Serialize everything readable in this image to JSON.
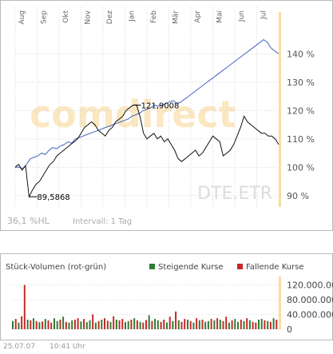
{
  "chart_data": [
    {
      "type": "line",
      "months": [
        "Aug",
        "Sep",
        "Okt",
        "Nov",
        "Dez",
        "Jan",
        "Feb",
        "Mär",
        "Apr",
        "Mai",
        "Jun",
        "Jul"
      ],
      "ylabels": [
        "140 %",
        "130 %",
        "120 %",
        "110 %",
        "100 %",
        "90 %"
      ],
      "yticks": [
        140,
        130,
        120,
        110,
        100,
        90
      ],
      "ylim": [
        86,
        148
      ],
      "grid": true,
      "series": [
        {
          "color": "#4466bb",
          "values": [
            100,
            100,
            99.5,
            101,
            103,
            103.5,
            104,
            105,
            104.5,
            106,
            107,
            106.5,
            107.5,
            108,
            109,
            108.5,
            110,
            110.5,
            111,
            111.5,
            112,
            112.5,
            113,
            113.5,
            114,
            114.5,
            115,
            115.5,
            116,
            116.5,
            117,
            118,
            118.5,
            119,
            120,
            120.5,
            121,
            121.9,
            121.5,
            122,
            122.5,
            123,
            123.5,
            122.5,
            123,
            124,
            125,
            126,
            127,
            128,
            129,
            130,
            131,
            132,
            133,
            134,
            135,
            136,
            137,
            138,
            139,
            140,
            141,
            142,
            143,
            144,
            145,
            144,
            142,
            141,
            140
          ]
        },
        {
          "color": "#111111",
          "values": [
            100,
            101,
            99,
            100.5,
            89.6,
            92,
            94,
            95,
            97,
            99,
            101,
            102,
            104,
            105,
            106,
            107,
            108,
            109,
            110,
            112,
            114,
            115,
            116,
            115,
            113,
            112,
            111,
            113,
            114,
            116,
            117,
            118,
            120,
            121,
            121.9,
            122,
            118,
            112,
            110,
            111,
            112,
            110,
            111,
            109,
            110,
            108,
            106,
            103,
            102,
            103,
            104,
            105,
            106,
            104,
            105,
            107,
            109,
            111,
            110,
            109,
            104,
            105,
            106,
            108,
            111,
            114,
            118,
            116,
            115,
            114,
            113,
            112,
            112,
            111,
            111,
            110,
            108
          ]
        }
      ],
      "annotations": [
        {
          "text": "121,9008",
          "value": 121.9
        },
        {
          "text": "89,5868",
          "value": 89.6
        }
      ],
      "watermark": "comdirect",
      "ticker": "DTE.ETR",
      "hl_text": "36,1 %HL",
      "interval_text": "Intervall: 1 Tag"
    },
    {
      "type": "bar",
      "title": "Stück-Volumen (rot-grün)",
      "legend": [
        {
          "label": "Steigende Kurse",
          "color": "#2e7d32"
        },
        {
          "label": "Fallende Kurse",
          "color": "#c62828"
        }
      ],
      "ylabels": [
        "120.000.000",
        "80.000.000",
        "40.000.000",
        "0"
      ],
      "yticks": [
        120000000,
        80000000,
        40000000,
        0
      ],
      "ylim": [
        0,
        130000000
      ],
      "values": [
        22,
        28,
        18,
        35,
        120,
        26,
        24,
        30,
        22,
        19,
        21,
        28,
        24,
        18,
        30,
        22,
        26,
        34,
        20,
        18,
        24,
        26,
        30,
        21,
        28,
        19,
        24,
        40,
        18,
        22,
        26,
        30,
        23,
        20,
        35,
        26,
        24,
        28,
        19,
        22,
        26,
        30,
        24,
        20,
        18,
        25,
        38,
        22,
        28,
        24,
        20,
        26,
        18,
        34,
        22,
        48,
        24,
        20,
        28,
        26,
        22,
        18,
        30,
        24,
        26,
        20,
        22,
        28,
        24,
        30,
        26,
        22,
        34,
        18,
        24,
        28,
        20,
        26,
        22,
        30,
        24,
        20,
        18,
        26,
        28,
        24,
        22,
        20,
        30,
        26
      ],
      "directions": [
        "u",
        "d",
        "u",
        "d",
        "d",
        "u",
        "d",
        "u",
        "d",
        "u",
        "d",
        "u",
        "d",
        "d",
        "u",
        "u",
        "d",
        "u",
        "d",
        "u",
        "u",
        "d",
        "d",
        "u",
        "d",
        "u",
        "u",
        "d",
        "u",
        "d",
        "u",
        "d",
        "d",
        "u",
        "d",
        "u",
        "d",
        "d",
        "u",
        "u",
        "d",
        "u",
        "d",
        "u",
        "d",
        "d",
        "u",
        "d",
        "u",
        "u",
        "d",
        "d",
        "u",
        "d",
        "u",
        "d",
        "u",
        "d",
        "d",
        "u",
        "d",
        "u",
        "d",
        "u",
        "d",
        "u",
        "u",
        "d",
        "u",
        "d",
        "u",
        "d",
        "d",
        "u",
        "d",
        "u",
        "u",
        "d",
        "u",
        "d",
        "u",
        "d",
        "d",
        "u",
        "u",
        "d",
        "u",
        "d",
        "u",
        "d"
      ],
      "value_scale": 1000000
    }
  ],
  "footer": {
    "date": "25.07.07",
    "time": "10:41 Uhr"
  }
}
